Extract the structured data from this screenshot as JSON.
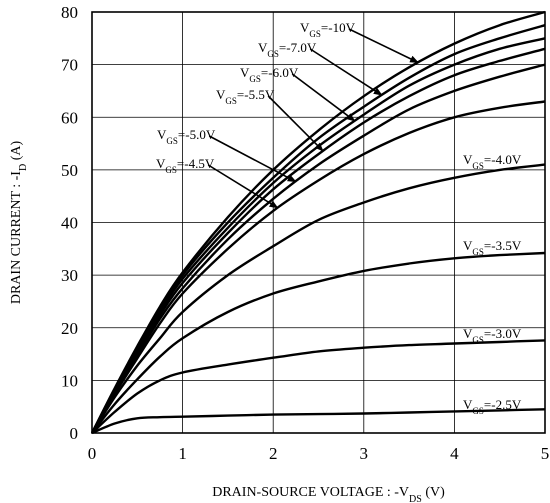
{
  "chart_data": {
    "type": "line",
    "xlabel": "DRAIN-SOURCE VOLTAGE : -V",
    "xlabel_sub": "DS",
    "xlabel_suffix": " (V)",
    "ylabel": "DRAIN CURRENT : -I",
    "ylabel_sub": "D",
    "ylabel_suffix": " (A)",
    "xlim": [
      0,
      5
    ],
    "ylim": [
      0,
      80
    ],
    "xticks": [
      "0",
      "1",
      "2",
      "3",
      "4",
      "5"
    ],
    "yticks": [
      "0",
      "10",
      "20",
      "30",
      "40",
      "50",
      "60",
      "70",
      "80"
    ],
    "grid": true,
    "x": [
      0,
      0.25,
      0.5,
      0.75,
      1,
      1.5,
      2,
      2.5,
      3,
      3.5,
      4,
      4.5,
      5
    ],
    "series": [
      {
        "name": "V",
        "sub": "GS",
        "value": "=-10V",
        "values": [
          0,
          8.5,
          16.5,
          24,
          30.5,
          41,
          50,
          57.5,
          64,
          69.5,
          74,
          77.5,
          80
        ]
      },
      {
        "name": "V",
        "sub": "GS",
        "value": "=-7.0V",
        "values": [
          0,
          8.3,
          16,
          23.5,
          30,
          40,
          48.5,
          56,
          62,
          67.5,
          72,
          75,
          77.5
        ]
      },
      {
        "name": "V",
        "sub": "GS",
        "value": "=-6.0V",
        "values": [
          0,
          8.1,
          15.7,
          23,
          29.3,
          39,
          47.5,
          54.5,
          60.5,
          66,
          70,
          73,
          75
        ]
      },
      {
        "name": "V",
        "sub": "GS",
        "value": "=-5.5V",
        "values": [
          0,
          7.9,
          15.3,
          22.4,
          28.5,
          38,
          46.3,
          53,
          59,
          64,
          68,
          70.7,
          73
        ]
      },
      {
        "name": "V",
        "sub": "GS",
        "value": "=-5.0V",
        "values": [
          0,
          7.7,
          14.8,
          21.7,
          27.5,
          36.8,
          44.5,
          51,
          56.5,
          61.5,
          65,
          67.7,
          70
        ]
      },
      {
        "name": "V",
        "sub": "GS",
        "value": "=-4.5V",
        "values": [
          0,
          7.4,
          14.2,
          20.8,
          26.5,
          35,
          42.2,
          48,
          53,
          57,
          60,
          61.8,
          63
        ]
      },
      {
        "name": "V",
        "sub": "GS",
        "value": "=-4.0V",
        "values": [
          0,
          6.8,
          12.8,
          18,
          23,
          30,
          35.5,
          40.5,
          43.8,
          46.5,
          48.5,
          50,
          51
        ]
      },
      {
        "name": "V",
        "sub": "GS",
        "value": "=-3.5V",
        "values": [
          0,
          5.5,
          10.2,
          14.5,
          18,
          23,
          26.5,
          28.8,
          30.8,
          32.2,
          33.2,
          33.8,
          34.2
        ]
      },
      {
        "name": "V",
        "sub": "GS",
        "value": "=-3.0V",
        "values": [
          0,
          4,
          7.5,
          10,
          11.5,
          13,
          14.3,
          15.5,
          16.2,
          16.7,
          17,
          17.3,
          17.6
        ]
      },
      {
        "name": "V",
        "sub": "GS",
        "value": "=-2.5V",
        "values": [
          0,
          1.8,
          2.8,
          3,
          3.1,
          3.3,
          3.5,
          3.6,
          3.7,
          3.9,
          4.1,
          4.3,
          4.5
        ]
      }
    ]
  }
}
